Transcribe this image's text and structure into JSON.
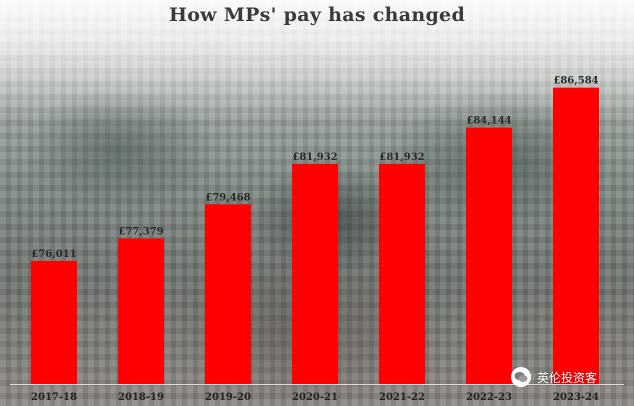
{
  "chart_data": {
    "type": "bar",
    "title": "How MPs' pay has changed",
    "categories": [
      "2017-18",
      "2018-19",
      "2019-20",
      "2020-21",
      "2021-22",
      "2022-23",
      "2023-24"
    ],
    "values": [
      76011,
      77379,
      79468,
      81932,
      81932,
      84144,
      86584
    ],
    "value_labels": [
      "£76,011",
      "£77,379",
      "£79,468",
      "£81,932",
      "£81,932",
      "£84,144",
      "£86,584"
    ],
    "ylim": [
      68500,
      87600
    ],
    "bar_color": "#ff0000",
    "grid": false
  },
  "watermark": {
    "text": "英伦投资客",
    "icon": "wechat-icon"
  }
}
